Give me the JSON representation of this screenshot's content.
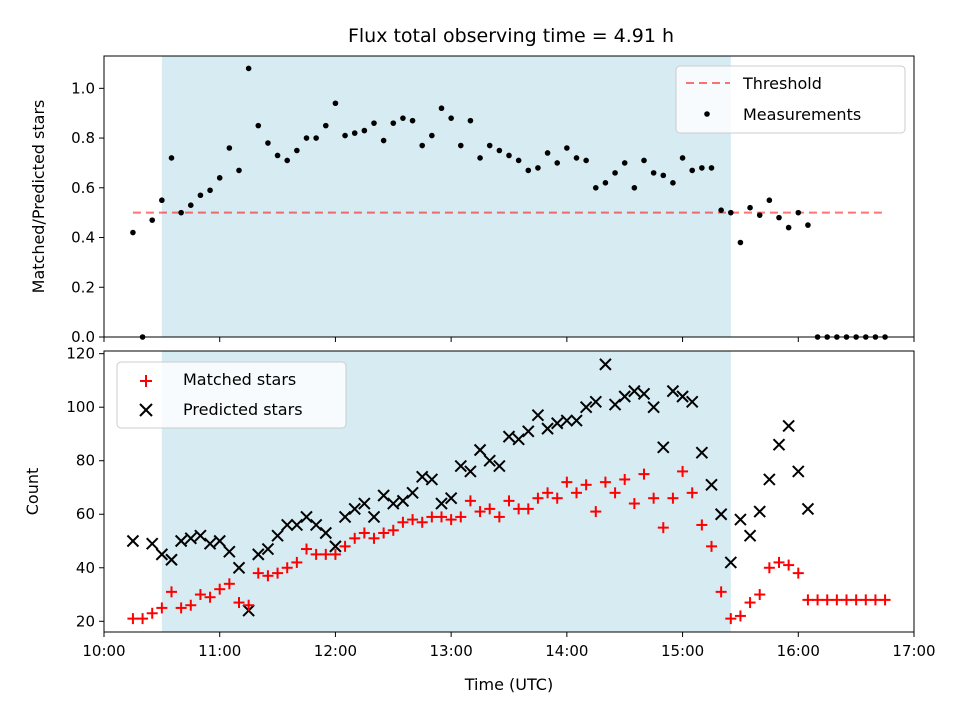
{
  "chart_data": [
    {
      "type": "scatter",
      "title": "Flux total observing time = 4.91 h",
      "ylabel": "Matched/Predicted stars",
      "xlabel": "",
      "xlim": [
        "10:00",
        "17:00"
      ],
      "ylim": [
        0,
        1.13
      ],
      "yticks": [
        "0.0",
        "0.2",
        "0.4",
        "0.6",
        "0.8",
        "1.0"
      ],
      "legend_position": "top-right",
      "shaded_span": [
        "10:30",
        "15:25"
      ],
      "threshold": {
        "name": "Threshold",
        "value": 0.5,
        "x_range": [
          "10:15",
          "16:45"
        ]
      },
      "series": [
        {
          "name": "Measurements",
          "x": [
            "10:15",
            "10:20",
            "10:25",
            "10:30",
            "10:35",
            "10:40",
            "10:45",
            "10:50",
            "10:55",
            "11:00",
            "11:05",
            "11:10",
            "11:15",
            "11:20",
            "11:25",
            "11:30",
            "11:35",
            "11:40",
            "11:45",
            "11:50",
            "11:55",
            "12:00",
            "12:05",
            "12:10",
            "12:15",
            "12:20",
            "12:25",
            "12:30",
            "12:35",
            "12:40",
            "12:45",
            "12:50",
            "12:55",
            "13:00",
            "13:05",
            "13:10",
            "13:15",
            "13:20",
            "13:25",
            "13:30",
            "13:35",
            "13:40",
            "13:45",
            "13:50",
            "13:55",
            "14:00",
            "14:05",
            "14:10",
            "14:15",
            "14:20",
            "14:25",
            "14:30",
            "14:35",
            "14:40",
            "14:45",
            "14:50",
            "14:55",
            "15:00",
            "15:05",
            "15:10",
            "15:15",
            "15:20",
            "15:25",
            "15:30",
            "15:35",
            "15:40",
            "15:45",
            "15:50",
            "15:55",
            "16:00",
            "16:05",
            "16:10",
            "16:15",
            "16:20",
            "16:25",
            "16:30",
            "16:35",
            "16:40",
            "16:45"
          ],
          "y": [
            0.42,
            0.0,
            0.47,
            0.55,
            0.72,
            0.5,
            0.53,
            0.57,
            0.59,
            0.64,
            0.76,
            0.67,
            1.08,
            0.85,
            0.78,
            0.73,
            0.71,
            0.75,
            0.8,
            0.8,
            0.85,
            0.94,
            0.81,
            0.82,
            0.83,
            0.86,
            0.79,
            0.86,
            0.88,
            0.87,
            0.77,
            0.81,
            0.92,
            0.88,
            0.77,
            0.87,
            0.72,
            0.77,
            0.75,
            0.73,
            0.71,
            0.67,
            0.68,
            0.74,
            0.7,
            0.76,
            0.72,
            0.71,
            0.6,
            0.62,
            0.66,
            0.7,
            0.6,
            0.71,
            0.66,
            0.65,
            0.62,
            0.72,
            0.67,
            0.68,
            0.68,
            0.51,
            0.5,
            0.38,
            0.52,
            0.49,
            0.55,
            0.48,
            0.44,
            0.5,
            0.45,
            0.0,
            0.0,
            0.0,
            0.0,
            0.0,
            0.0,
            0.0,
            0.0
          ],
          "color": "#000000"
        }
      ]
    },
    {
      "type": "scatter",
      "title": "",
      "ylabel": "Count",
      "xlabel": "Time (UTC)",
      "xlim": [
        "10:00",
        "17:00"
      ],
      "xticks": [
        "10:00",
        "11:00",
        "12:00",
        "13:00",
        "14:00",
        "15:00",
        "16:00",
        "17:00"
      ],
      "ylim": [
        16,
        121
      ],
      "yticks": [
        "20",
        "40",
        "60",
        "80",
        "100",
        "120"
      ],
      "legend_position": "top-left",
      "shaded_span": [
        "10:30",
        "15:25"
      ],
      "series": [
        {
          "name": "Matched stars",
          "marker": "plus",
          "color": "#ff0000",
          "x": [
            "10:15",
            "10:20",
            "10:25",
            "10:30",
            "10:35",
            "10:40",
            "10:45",
            "10:50",
            "10:55",
            "11:00",
            "11:05",
            "11:10",
            "11:15",
            "11:20",
            "11:25",
            "11:30",
            "11:35",
            "11:40",
            "11:45",
            "11:50",
            "11:55",
            "12:00",
            "12:05",
            "12:10",
            "12:15",
            "12:20",
            "12:25",
            "12:30",
            "12:35",
            "12:40",
            "12:45",
            "12:50",
            "12:55",
            "13:00",
            "13:05",
            "13:10",
            "13:15",
            "13:20",
            "13:25",
            "13:30",
            "13:35",
            "13:40",
            "13:45",
            "13:50",
            "13:55",
            "14:00",
            "14:05",
            "14:10",
            "14:15",
            "14:20",
            "14:25",
            "14:30",
            "14:35",
            "14:40",
            "14:45",
            "14:50",
            "14:55",
            "15:00",
            "15:05",
            "15:10",
            "15:15",
            "15:20",
            "15:25",
            "15:30",
            "15:35",
            "15:40",
            "15:45",
            "15:50",
            "15:55",
            "16:00",
            "16:05",
            "16:10",
            "16:15",
            "16:20",
            "16:25",
            "16:30",
            "16:35",
            "16:40",
            "16:45"
          ],
          "y": [
            21,
            21,
            23,
            25,
            31,
            25,
            26,
            30,
            29,
            32,
            34,
            27,
            26,
            38,
            37,
            38,
            40,
            42,
            47,
            45,
            45,
            45,
            48,
            51,
            53,
            51,
            53,
            54,
            57,
            58,
            57,
            59,
            59,
            58,
            59,
            65,
            61,
            62,
            59,
            65,
            62,
            62,
            66,
            68,
            66,
            72,
            68,
            71,
            61,
            72,
            68,
            73,
            64,
            75,
            66,
            55,
            66,
            76,
            68,
            56,
            48,
            31,
            21,
            22,
            27,
            30,
            40,
            42,
            41,
            38,
            28,
            28,
            28,
            28,
            28,
            28,
            28,
            28,
            28
          ]
        },
        {
          "name": "Predicted stars",
          "marker": "x",
          "color": "#000000",
          "x": [
            "10:15",
            "10:25",
            "10:30",
            "10:35",
            "10:40",
            "10:45",
            "10:50",
            "10:55",
            "11:00",
            "11:05",
            "11:10",
            "11:15",
            "11:20",
            "11:25",
            "11:30",
            "11:35",
            "11:40",
            "11:45",
            "11:50",
            "11:55",
            "12:00",
            "12:05",
            "12:10",
            "12:15",
            "12:20",
            "12:25",
            "12:30",
            "12:35",
            "12:40",
            "12:45",
            "12:50",
            "12:55",
            "13:00",
            "13:05",
            "13:10",
            "13:15",
            "13:20",
            "13:25",
            "13:30",
            "13:35",
            "13:40",
            "13:45",
            "13:50",
            "13:55",
            "14:00",
            "14:05",
            "14:10",
            "14:15",
            "14:20",
            "14:25",
            "14:30",
            "14:35",
            "14:40",
            "14:45",
            "14:50",
            "14:55",
            "15:00",
            "15:05",
            "15:10",
            "15:15",
            "15:20",
            "15:25",
            "15:30",
            "15:35",
            "15:40",
            "15:45",
            "15:50",
            "15:55",
            "16:00",
            "16:05"
          ],
          "y": [
            50,
            49,
            45,
            43,
            50,
            51,
            52,
            49,
            50,
            46,
            40,
            24,
            45,
            47,
            52,
            56,
            56,
            59,
            56,
            53,
            48,
            59,
            62,
            64,
            59,
            67,
            64,
            65,
            68,
            74,
            73,
            64,
            66,
            78,
            76,
            84,
            80,
            78,
            89,
            88,
            91,
            97,
            92,
            94,
            95,
            95,
            100,
            102,
            116,
            101,
            104,
            106,
            105,
            100,
            85,
            106,
            104,
            102,
            83,
            71,
            60,
            42,
            58,
            52,
            61,
            73,
            86,
            93,
            76,
            62
          ]
        }
      ]
    }
  ]
}
